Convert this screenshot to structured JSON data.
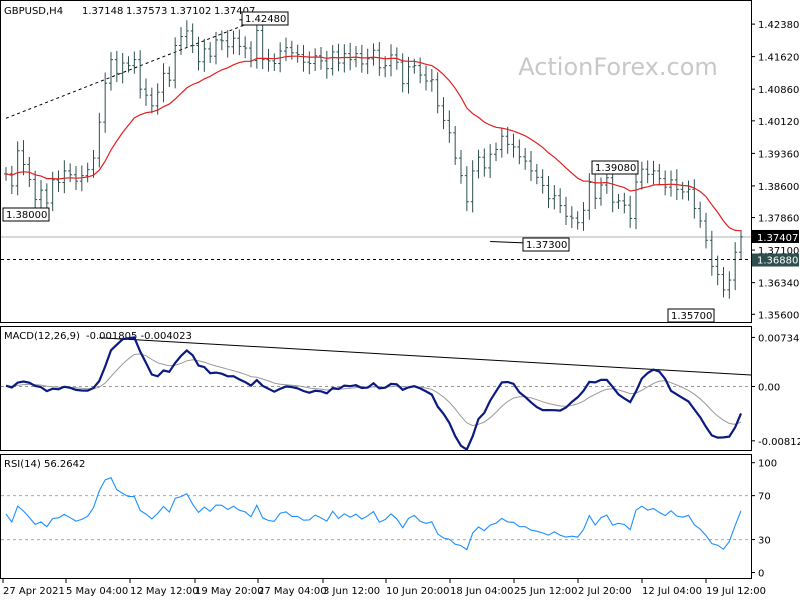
{
  "chart_data": {
    "type": "ohlc",
    "watermark": "ActionForex.com",
    "symbol_header": "GBPUSD,H4",
    "ohlc_header": [
      "1.37148",
      "1.37573",
      "1.37102",
      "1.37407"
    ],
    "x_ticks": [
      "27 Apr 2021",
      "5 May 04:00",
      "12 May 12:00",
      "19 May 20:00",
      "27 May 04:00",
      "3 Jun 12:00",
      "10 Jun 20:00",
      "18 Jun 04:00",
      "25 Jun 12:00",
      "2 Jul 20:00",
      "12 Jul 04:00",
      "19 Jul 12:00"
    ],
    "price": {
      "ylim": [
        1.3542,
        1.4292
      ],
      "y_ticks": [
        "1.42380",
        "1.41620",
        "1.40860",
        "1.40120",
        "1.39360",
        "1.38600",
        "1.37860",
        "1.37100",
        "1.36340",
        "1.35600"
      ],
      "current_price": "1.37407",
      "dashed_level": "1.36880",
      "closes": [
        1.3888,
        1.386,
        1.3942,
        1.391,
        1.3875,
        1.3828,
        1.385,
        1.382,
        1.3874,
        1.3868,
        1.3895,
        1.3886,
        1.3871,
        1.3884,
        1.3898,
        1.3925,
        1.4009,
        1.41,
        1.4155,
        1.4123,
        1.4147,
        1.4141,
        1.4155,
        1.4086,
        1.4072,
        1.4047,
        1.4079,
        1.4123,
        1.4107,
        1.4188,
        1.4209,
        1.4222,
        1.4188,
        1.415,
        1.418,
        1.4163,
        1.4201,
        1.4199,
        1.4185,
        1.4205,
        1.4186,
        1.4182,
        1.4153,
        1.4223,
        1.4155,
        1.4152,
        1.4146,
        1.4175,
        1.4183,
        1.4171,
        1.4167,
        1.4149,
        1.4146,
        1.4164,
        1.4152,
        1.4134,
        1.4173,
        1.4147,
        1.4169,
        1.4155,
        1.4169,
        1.4145,
        1.4157,
        1.4177,
        1.4136,
        1.4141,
        1.4166,
        1.4149,
        1.4099,
        1.4138,
        1.4141,
        1.4119,
        1.4105,
        1.4108,
        1.4047,
        1.4013,
        1.3984,
        1.3925,
        1.3884,
        1.3823,
        1.3895,
        1.3927,
        1.3902,
        1.3934,
        1.3945,
        1.3976,
        1.3957,
        1.3951,
        1.3928,
        1.3918,
        1.3895,
        1.388,
        1.3861,
        1.383,
        1.3837,
        1.3814,
        1.3789,
        1.3785,
        1.3774,
        1.3803,
        1.3868,
        1.3831,
        1.3862,
        1.3879,
        1.3822,
        1.3825,
        1.3815,
        1.3784,
        1.3869,
        1.3899,
        1.3887,
        1.3895,
        1.3877,
        1.3857,
        1.3874,
        1.3852,
        1.3846,
        1.3852,
        1.3807,
        1.3778,
        1.3733,
        1.3672,
        1.3653,
        1.3617,
        1.364,
        1.3705,
        1.3741
      ],
      "ma": [
        1.3888,
        1.3885,
        1.3891,
        1.3893,
        1.3892,
        1.3886,
        1.3883,
        1.3877,
        1.3877,
        1.3876,
        1.3878,
        1.3879,
        1.3878,
        1.3879,
        1.3881,
        1.3885,
        1.3897,
        1.3918,
        1.3944,
        1.3965,
        1.3985,
        1.4002,
        1.4019,
        1.4026,
        1.4031,
        1.4033,
        1.4037,
        1.4045,
        1.4051,
        1.4063,
        1.4076,
        1.4089,
        1.4097,
        1.4102,
        1.411,
        1.4116,
        1.4124,
        1.4131,
        1.4136,
        1.4143,
        1.4148,
        1.4151,
        1.4151,
        1.4158,
        1.4158,
        1.4158,
        1.4157,
        1.4159,
        1.4162,
        1.4163,
        1.4163,
        1.4162,
        1.4161,
        1.4161,
        1.4161,
        1.4158,
        1.416,
        1.4159,
        1.416,
        1.416,
        1.4161,
        1.4159,
        1.4159,
        1.4161,
        1.4159,
        1.4157,
        1.4158,
        1.4158,
        1.4152,
        1.4151,
        1.4151,
        1.4148,
        1.4144,
        1.4141,
        1.4132,
        1.412,
        1.4106,
        1.4088,
        1.4067,
        1.4042,
        1.4029,
        1.402,
        1.4009,
        1.4002,
        1.3997,
        1.3995,
        1.3992,
        1.3988,
        1.3983,
        1.3977,
        1.3969,
        1.396,
        1.395,
        1.3937,
        1.3927,
        1.3915,
        1.3902,
        1.389,
        1.3878,
        1.3871,
        1.3871,
        1.3867,
        1.3867,
        1.3868,
        1.3864,
        1.386,
        1.3856,
        1.3848,
        1.385,
        1.3855,
        1.3858,
        1.3862,
        1.3863,
        1.3863,
        1.3864,
        1.3863,
        1.3861,
        1.386,
        1.3855,
        1.3847,
        1.3835,
        1.3816,
        1.3798,
        1.3778,
        1.3762,
        1.3756,
        1.3755
      ],
      "callouts": [
        {
          "label": "1.42480",
          "index": 40,
          "value": 1.4248
        },
        {
          "label": "1.39080",
          "index": 102,
          "value": 1.3908
        },
        {
          "label": "1.38000",
          "index": 7,
          "value": 1.38
        },
        {
          "label": "1.37300",
          "index": 83,
          "value": 1.373
        },
        {
          "label": "1.35700",
          "index": 120,
          "value": 1.357
        }
      ],
      "trendline": {
        "from": [
          0,
          1.4018
        ],
        "to": [
          42,
          1.4242
        ]
      }
    },
    "macd": {
      "title": "MACD(12,26,9)",
      "title_values": "-0.001805 -0.004023",
      "ylim": [
        -0.0095,
        0.0089
      ],
      "y_ticks": [
        "0.007342",
        "0.00",
        "-0.008126"
      ],
      "macd": [
        0.00012,
        -0.00015,
        0.00058,
        0.00074,
        0.00057,
        8e-05,
        -9e-05,
        -0.00069,
        -0.00033,
        -0.00042,
        -5e-05,
        -0.0002,
        -0.00051,
        -0.0006,
        -0.00062,
        -0.00023,
        0.00083,
        0.00301,
        0.00542,
        0.00625,
        0.00707,
        0.00722,
        0.00735,
        0.00523,
        0.00353,
        0.00179,
        0.00153,
        0.00239,
        0.0022,
        0.00353,
        0.00457,
        0.00539,
        0.00466,
        0.00314,
        0.0029,
        0.00199,
        0.00208,
        0.00192,
        0.00153,
        0.00154,
        0.00106,
        0.00066,
        0.00014,
        0.00096,
        0.00011,
        -0.00035,
        -0.00078,
        -0.00034,
        0.0,
        -7e-05,
        -0.00028,
        -0.00067,
        -0.00093,
        -0.00064,
        -0.00072,
        -0.00103,
        -0.00023,
        -0.00037,
        0.00013,
        5e-05,
        0.0002,
        -0.00023,
        -0.00017,
        0.00048,
        -0.00028,
        -0.00018,
        0.00039,
        0.00033,
        -0.00049,
        -0.00013,
        5e-05,
        -0.00029,
        -0.00073,
        -0.00121,
        -0.00301,
        -0.00408,
        -0.00543,
        -0.00742,
        -0.00887,
        -0.00943,
        -0.00743,
        -0.00485,
        -0.00395,
        -0.00211,
        -0.00073,
        0.00061,
        0.00067,
        0.00041,
        -0.00085,
        -0.00155,
        -0.00236,
        -0.00308,
        -0.00353,
        -0.00353,
        -0.00355,
        -0.00361,
        -0.00314,
        -0.00231,
        -0.00162,
        -0.00065,
        0.00069,
        0.00062,
        0.00099,
        0.00099,
        -6e-05,
        -0.00118,
        -0.00179,
        -0.00234,
        -0.00074,
        0.00118,
        0.00202,
        0.00252,
        0.00223,
        0.00112,
        -0.00064,
        -0.00119,
        -0.00173,
        -0.00225,
        -0.00343,
        -0.0046,
        -0.00604,
        -0.00732,
        -0.00764,
        -0.00761,
        -0.00749,
        -0.00611,
        -0.00402
      ],
      "signal": [
        0.00012,
        6e-05,
        0.00016,
        0.00028,
        0.00034,
        0.00029,
        0.00021,
        3e-05,
        -4e-05,
        -0.00012,
        -0.0001,
        -0.00012,
        -0.0002,
        -0.00028,
        -0.00035,
        -0.00033,
        -0.0001,
        0.00052,
        0.0015,
        0.00245,
        0.00337,
        0.00414,
        0.00478,
        0.00487,
        0.0046,
        0.00404,
        0.00354,
        0.00331,
        0.00309,
        0.00318,
        0.00346,
        0.00385,
        0.00401,
        0.00384,
        0.00365,
        0.00332,
        0.00307,
        0.00284,
        0.00258,
        0.00237,
        0.00211,
        0.00182,
        0.00148,
        0.00138,
        0.00112,
        0.00083,
        0.0005,
        0.00033,
        0.00026,
        0.0002,
        0.0001,
        -5e-05,
        -0.00023,
        -0.00031,
        -0.00039,
        -0.00052,
        -0.00046,
        -0.00044,
        -0.00033,
        -0.00025,
        -0.00016,
        -0.00017,
        -0.00017,
        -4e-05,
        -9e-05,
        -0.0001,
        -1e-05,
        6e-05,
        -5e-05,
        -7e-05,
        -4e-05,
        -9e-05,
        -0.00022,
        -0.00042,
        -0.00094,
        -0.00157,
        -0.00234,
        -0.00336,
        -0.00446,
        -0.00545,
        -0.00585,
        -0.00565,
        -0.00531,
        -0.00467,
        -0.00388,
        -0.00298,
        -0.00225,
        -0.00172,
        -0.00154,
        -0.00154,
        -0.0017,
        -0.00198,
        -0.00229,
        -0.00254,
        -0.00274,
        -0.00292,
        -0.00296,
        -0.00283,
        -0.00259,
        -0.0022,
        -0.00162,
        -0.00117,
        -0.00074,
        -0.0004,
        -0.00033,
        -0.0005,
        -0.00076,
        -0.00107,
        -0.001,
        -0.00057,
        -5e-05,
        0.00046,
        0.00081,
        0.00087,
        0.00057,
        0.00022,
        -0.00017,
        -0.00058,
        -0.00115,
        -0.00184,
        -0.00268,
        -0.00361,
        -0.00441,
        -0.00505,
        -0.00554,
        -0.00565,
        -0.00532
      ],
      "trendline": {
        "from": [
          16,
          0.0073
        ],
        "to": [
          126,
          0.0018
        ]
      }
    },
    "rsi": {
      "title": "RSI(14) 56.2642",
      "ylim": [
        -5,
        107
      ],
      "y_ticks": [
        "100",
        "70",
        "30",
        "0"
      ],
      "levels": [
        30,
        70
      ],
      "values": [
        53.2,
        46.0,
        60.4,
        56.0,
        50.1,
        43.8,
        46.1,
        41.7,
        49.2,
        49.8,
        52.9,
        49.9,
        46.8,
        48.4,
        51.3,
        59.1,
        74.3,
        84.4,
        86.3,
        75.3,
        72.0,
        69.1,
        69.2,
        56.5,
        53.2,
        48.8,
        53.8,
        60.2,
        55.0,
        67.6,
        69.1,
        71.8,
        62.1,
        54.7,
        59.6,
        55.7,
        61.4,
        61.2,
        57.4,
        60.3,
        56.7,
        55.2,
        50.7,
        61.2,
        49.7,
        47.4,
        46.6,
        54.0,
        55.3,
        51.1,
        51.1,
        47.6,
        47.9,
        52.4,
        49.7,
        46.8,
        55.8,
        49.2,
        53.5,
        50.4,
        53.1,
        48.6,
        51.6,
        55.5,
        45.8,
        48.3,
        53.4,
        48.8,
        40.8,
        49.4,
        52.0,
        46.6,
        44.7,
        46.2,
        35.2,
        31.4,
        30.3,
        25.8,
        24.5,
        20.8,
        35.9,
        41.4,
        38.1,
        43.2,
        44.9,
        49.3,
        46.1,
        45.7,
        41.8,
        41.7,
        38.6,
        37.6,
        36.0,
        34.0,
        37.1,
        34.0,
        32.2,
        33.1,
        32.2,
        39.1,
        51.8,
        43.2,
        49.9,
        52.3,
        43.2,
        44.8,
        43.7,
        39.1,
        56.7,
        60.4,
        56.8,
        58.3,
        54.7,
        51.8,
        56.3,
        51.5,
        50.4,
        52.1,
        43.4,
        39.4,
        33.7,
        26.2,
        24.9,
        21.1,
        28.2,
        42.9,
        56.3
      ]
    }
  }
}
